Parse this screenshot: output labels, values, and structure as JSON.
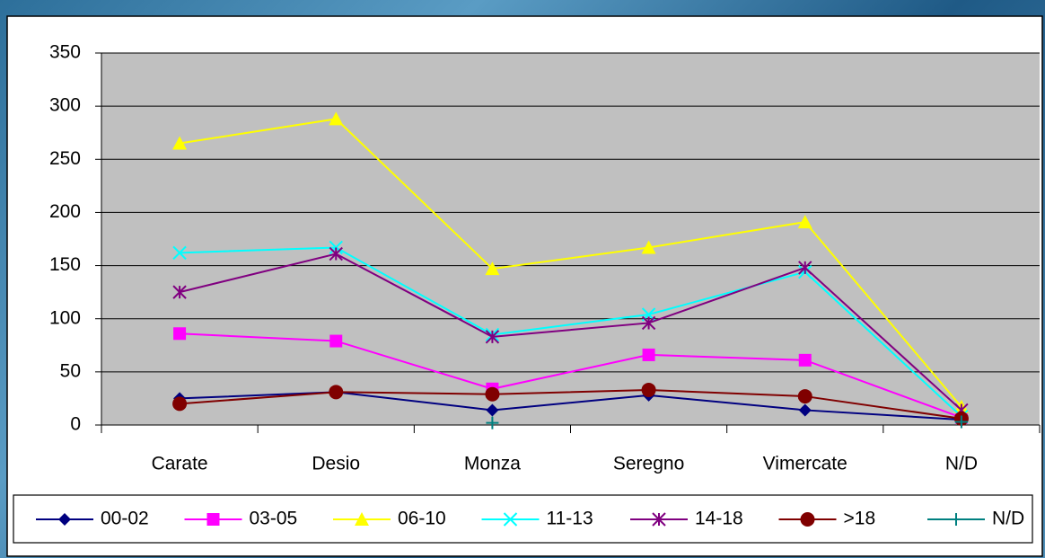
{
  "chart_data": {
    "type": "line",
    "categories": [
      "Carate",
      "Desio",
      "Monza",
      "Seregno",
      "Vimercate",
      "N/D"
    ],
    "series": [
      {
        "name": "00-02",
        "color": "#000080",
        "marker": "diamond",
        "values": [
          25,
          31,
          14,
          28,
          14,
          5
        ]
      },
      {
        "name": "03-05",
        "color": "#ff00ff",
        "marker": "square",
        "values": [
          86,
          79,
          34,
          66,
          61,
          7
        ]
      },
      {
        "name": "06-10",
        "color": "#ffff00",
        "marker": "triangle",
        "values": [
          265,
          288,
          147,
          167,
          191,
          17
        ]
      },
      {
        "name": "11-13",
        "color": "#00ffff",
        "marker": "x",
        "values": [
          162,
          167,
          85,
          104,
          144,
          8
        ]
      },
      {
        "name": "14-18",
        "color": "#800080",
        "marker": "asterisk",
        "values": [
          125,
          161,
          83,
          96,
          148,
          14
        ]
      },
      {
        "name": ">18",
        "color": "#800000",
        "marker": "circle",
        "values": [
          20,
          31,
          29,
          33,
          27,
          6
        ]
      },
      {
        "name": "N/D",
        "color": "#008080",
        "marker": "plus",
        "values": [
          null,
          null,
          2,
          null,
          null,
          3
        ]
      }
    ],
    "ylim": [
      0,
      350
    ],
    "yticks": [
      0,
      50,
      100,
      150,
      200,
      250,
      300,
      350
    ],
    "grid": true,
    "legend": "bottom"
  }
}
